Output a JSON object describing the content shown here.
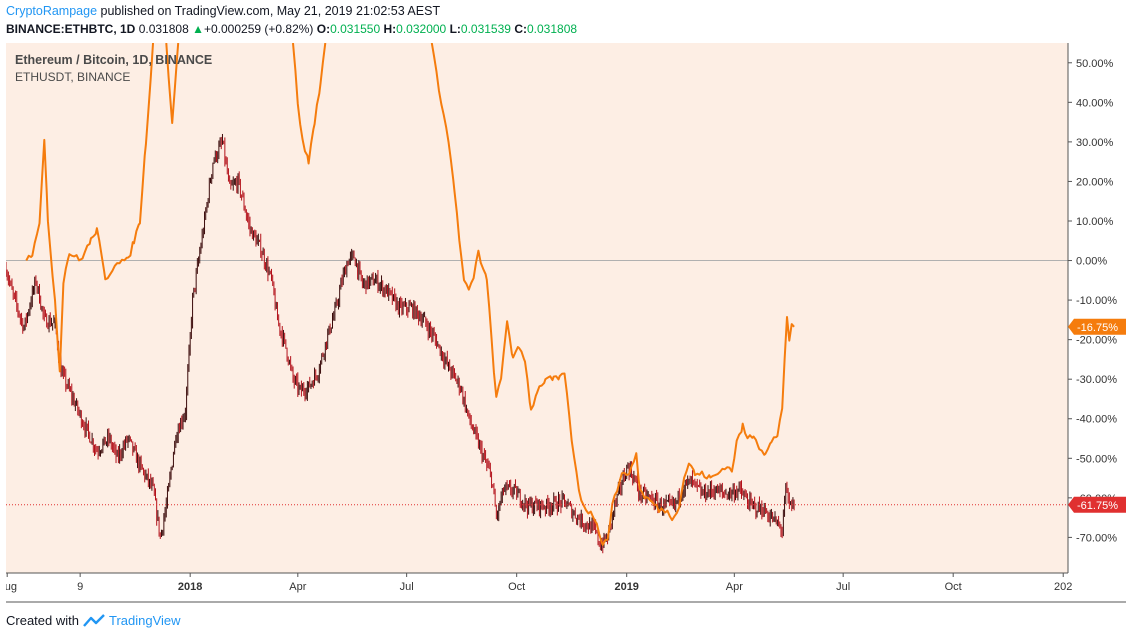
{
  "header": {
    "author": "CryptoRampage",
    "published_text": "published on TradingView.com, May 21, 2019 21:02:53 AEST",
    "symbol": "BINANCE:ETHBTC, 1D",
    "last": "0.031808",
    "change_arrow": "▲",
    "change": "+0.000259 (+0.82%)",
    "o_label": "O:",
    "o_value": "0.031550",
    "h_label": "H:",
    "h_value": "0.032000",
    "l_label": "L:",
    "l_value": "0.031539",
    "c_label": "C:",
    "c_value": "0.031808"
  },
  "footer": {
    "created_with": "Created with",
    "brand": "TradingView",
    "logo_icon": "tradingview-logo-icon"
  },
  "colors": {
    "plot_background": "#fdeee4",
    "ethbtc": "#3a0a0a",
    "ethbtc_candle": "#b3121b",
    "ethusdt": "#f57c0d",
    "last_badge_ethusdt": "#f57c0d",
    "last_badge_ethbtc": "#e03030",
    "zero_line": "#b0b0b0"
  },
  "chart_data": {
    "type": "line",
    "title": "Ethereum / Bitcoin, 1D, BINANCE",
    "subtitle": "ETHUSDT, BINANCE",
    "y_axis": {
      "unit": "% change",
      "ylim": [
        -79,
        55
      ],
      "ticks": [
        50,
        40,
        30,
        20,
        10,
        0,
        -10,
        -20,
        -30,
        -40,
        -50,
        -60,
        -70
      ],
      "tick_labels": [
        "50.00%",
        "40.00%",
        "30.00%",
        "20.00%",
        "10.00%",
        "0.00%",
        "-10.00%",
        "-20.00%",
        "-30.00%",
        "-40.00%",
        "-50.00%",
        "-60.00%",
        "-70.00%"
      ],
      "side": "right"
    },
    "x_axis": {
      "start": "2017-07-31",
      "end": "2020-01-05",
      "ticks": [
        {
          "date": "2017-08-01",
          "label": "Aug",
          "bold": false
        },
        {
          "date": "2017-10-01",
          "label": "9",
          "bold": false
        },
        {
          "date": "2018-01-01",
          "label": "2018",
          "bold": true
        },
        {
          "date": "2018-04-01",
          "label": "Apr",
          "bold": false
        },
        {
          "date": "2018-07-01",
          "label": "Jul",
          "bold": false
        },
        {
          "date": "2018-10-01",
          "label": "Oct",
          "bold": false
        },
        {
          "date": "2019-01-01",
          "label": "2019",
          "bold": true
        },
        {
          "date": "2019-04-01",
          "label": "Apr",
          "bold": false
        },
        {
          "date": "2019-07-01",
          "label": "Jul",
          "bold": false
        },
        {
          "date": "2019-10-01",
          "label": "Oct",
          "bold": false
        },
        {
          "date": "2020-01-01",
          "label": "202",
          "bold": false
        }
      ]
    },
    "grid": false,
    "baseline": 0,
    "series": [
      {
        "name": "ETHBTC",
        "style": "candles",
        "last_value": -61.75,
        "last_label": "-61.75%",
        "points": [
          [
            "2017-07-31",
            -2
          ],
          [
            "2017-08-05",
            -8
          ],
          [
            "2017-08-15",
            -17
          ],
          [
            "2017-08-25",
            -5
          ],
          [
            "2017-09-01",
            -15
          ],
          [
            "2017-09-10",
            -16
          ],
          [
            "2017-09-15",
            -28
          ],
          [
            "2017-09-25",
            -35
          ],
          [
            "2017-10-05",
            -42
          ],
          [
            "2017-10-15",
            -48
          ],
          [
            "2017-10-25",
            -45
          ],
          [
            "2017-11-01",
            -50
          ],
          [
            "2017-11-10",
            -45
          ],
          [
            "2017-11-20",
            -52
          ],
          [
            "2017-12-01",
            -58
          ],
          [
            "2017-12-07",
            -70
          ],
          [
            "2017-12-12",
            -62
          ],
          [
            "2017-12-20",
            -44
          ],
          [
            "2017-12-28",
            -38
          ],
          [
            "2018-01-03",
            -10
          ],
          [
            "2018-01-08",
            0
          ],
          [
            "2018-01-13",
            10
          ],
          [
            "2018-01-20",
            25
          ],
          [
            "2018-01-28",
            30
          ],
          [
            "2018-02-03",
            18
          ],
          [
            "2018-02-10",
            20
          ],
          [
            "2018-02-20",
            8
          ],
          [
            "2018-03-01",
            3
          ],
          [
            "2018-03-10",
            -5
          ],
          [
            "2018-03-15",
            -15
          ],
          [
            "2018-03-22",
            -22
          ],
          [
            "2018-03-28",
            -30
          ],
          [
            "2018-04-03",
            -33
          ],
          [
            "2018-04-10",
            -32
          ],
          [
            "2018-04-18",
            -28
          ],
          [
            "2018-04-25",
            -20
          ],
          [
            "2018-05-03",
            -12
          ],
          [
            "2018-05-08",
            -5
          ],
          [
            "2018-05-13",
            0
          ],
          [
            "2018-05-18",
            1
          ],
          [
            "2018-05-25",
            -6
          ],
          [
            "2018-06-05",
            -5
          ],
          [
            "2018-06-15",
            -8
          ],
          [
            "2018-06-25",
            -12
          ],
          [
            "2018-07-05",
            -12
          ],
          [
            "2018-07-15",
            -15
          ],
          [
            "2018-07-25",
            -20
          ],
          [
            "2018-08-05",
            -27
          ],
          [
            "2018-08-15",
            -32
          ],
          [
            "2018-08-22",
            -40
          ],
          [
            "2018-09-01",
            -48
          ],
          [
            "2018-09-10",
            -55
          ],
          [
            "2018-09-14",
            -65
          ],
          [
            "2018-09-20",
            -58
          ],
          [
            "2018-09-28",
            -58
          ],
          [
            "2018-10-10",
            -62
          ],
          [
            "2018-10-25",
            -62
          ],
          [
            "2018-11-10",
            -61
          ],
          [
            "2018-11-18",
            -64
          ],
          [
            "2018-11-25",
            -66
          ],
          [
            "2018-12-05",
            -68
          ],
          [
            "2018-12-10",
            -72
          ],
          [
            "2018-12-16",
            -70
          ],
          [
            "2018-12-22",
            -62
          ],
          [
            "2018-12-28",
            -56
          ],
          [
            "2019-01-02",
            -52
          ],
          [
            "2019-01-07",
            -55
          ],
          [
            "2019-01-12",
            -59
          ],
          [
            "2019-01-20",
            -60
          ],
          [
            "2019-01-30",
            -62
          ],
          [
            "2019-02-10",
            -62
          ],
          [
            "2019-02-18",
            -57
          ],
          [
            "2019-02-24",
            -56
          ],
          [
            "2019-03-05",
            -59
          ],
          [
            "2019-03-15",
            -58
          ],
          [
            "2019-03-25",
            -59
          ],
          [
            "2019-04-05",
            -58
          ],
          [
            "2019-04-15",
            -62
          ],
          [
            "2019-04-25",
            -63
          ],
          [
            "2019-05-05",
            -66
          ],
          [
            "2019-05-11",
            -68
          ],
          [
            "2019-05-14",
            -58
          ],
          [
            "2019-05-17",
            -62
          ],
          [
            "2019-05-21",
            -61.75
          ]
        ]
      },
      {
        "name": "ETHUSDT",
        "style": "line",
        "last_value": -16.75,
        "last_label": "-16.75%",
        "points": [
          [
            "2017-08-17",
            0
          ],
          [
            "2017-08-22",
            2
          ],
          [
            "2017-08-28",
            10
          ],
          [
            "2017-09-01",
            30
          ],
          [
            "2017-09-04",
            10
          ],
          [
            "2017-09-10",
            -10
          ],
          [
            "2017-09-14",
            -28
          ],
          [
            "2017-09-17",
            -5
          ],
          [
            "2017-09-22",
            2
          ],
          [
            "2017-10-01",
            0
          ],
          [
            "2017-10-10",
            5
          ],
          [
            "2017-10-15",
            8
          ],
          [
            "2017-10-22",
            -5
          ],
          [
            "2017-11-01",
            0
          ],
          [
            "2017-11-10",
            0
          ],
          [
            "2017-11-15",
            5
          ],
          [
            "2017-11-20",
            10
          ],
          [
            "2017-11-25",
            30
          ],
          [
            "2017-12-01",
            55
          ],
          [
            "2017-12-05",
            60
          ]
        ],
        "segments": [
          [
            [
              "2017-12-12",
              55
            ],
            [
              "2017-12-17",
              35
            ],
            [
              "2017-12-22",
              55
            ]
          ],
          [
            [
              "2018-03-28",
              55
            ],
            [
              "2018-04-01",
              40
            ],
            [
              "2018-04-05",
              30
            ],
            [
              "2018-04-10",
              25
            ],
            [
              "2018-04-15",
              35
            ],
            [
              "2018-04-20",
              45
            ],
            [
              "2018-04-24",
              55
            ]
          ],
          [
            [
              "2018-07-22",
              55
            ],
            [
              "2018-07-26",
              47
            ],
            [
              "2018-08-01",
              37
            ],
            [
              "2018-08-05",
              30
            ],
            [
              "2018-08-10",
              18
            ],
            [
              "2018-08-14",
              5
            ],
            [
              "2018-08-18",
              -5
            ],
            [
              "2018-08-22",
              -8
            ],
            [
              "2018-08-26",
              -4
            ],
            [
              "2018-08-30",
              2
            ],
            [
              "2018-09-06",
              -5
            ],
            [
              "2018-09-10",
              -20
            ],
            [
              "2018-09-14",
              -35
            ],
            [
              "2018-09-18",
              -30
            ],
            [
              "2018-09-23",
              -15
            ],
            [
              "2018-09-28",
              -25
            ],
            [
              "2018-10-03",
              -22
            ],
            [
              "2018-10-08",
              -25
            ],
            [
              "2018-10-13",
              -38
            ],
            [
              "2018-10-18",
              -33
            ],
            [
              "2018-10-25",
              -30
            ],
            [
              "2018-11-01",
              -30
            ],
            [
              "2018-11-06",
              -30
            ],
            [
              "2018-11-10",
              -28
            ],
            [
              "2018-11-14",
              -40
            ],
            [
              "2018-11-18",
              -50
            ],
            [
              "2018-11-22",
              -58
            ],
            [
              "2018-11-26",
              -62
            ],
            [
              "2018-12-02",
              -64
            ],
            [
              "2018-12-07",
              -66
            ],
            [
              "2018-12-12",
              -72
            ],
            [
              "2018-12-16",
              -70
            ],
            [
              "2018-12-20",
              -62
            ],
            [
              "2018-12-24",
              -58
            ],
            [
              "2018-12-28",
              -53
            ],
            [
              "2019-01-01",
              -55
            ],
            [
              "2019-01-05",
              -52
            ],
            [
              "2019-01-09",
              -49
            ],
            [
              "2019-01-12",
              -58
            ],
            [
              "2019-01-17",
              -60
            ],
            [
              "2019-01-22",
              -61
            ],
            [
              "2019-01-28",
              -63
            ],
            [
              "2019-02-02",
              -63
            ],
            [
              "2019-02-08",
              -65
            ],
            [
              "2019-02-14",
              -62
            ],
            [
              "2019-02-18",
              -55
            ],
            [
              "2019-02-22",
              -51
            ],
            [
              "2019-02-27",
              -54
            ],
            [
              "2019-03-05",
              -54
            ],
            [
              "2019-03-12",
              -55
            ],
            [
              "2019-03-18",
              -54
            ],
            [
              "2019-03-24",
              -52
            ],
            [
              "2019-03-30",
              -53
            ],
            [
              "2019-04-03",
              -46
            ],
            [
              "2019-04-08",
              -42
            ],
            [
              "2019-04-12",
              -45
            ],
            [
              "2019-04-17",
              -44
            ],
            [
              "2019-04-22",
              -47
            ],
            [
              "2019-04-27",
              -49
            ],
            [
              "2019-05-02",
              -46
            ],
            [
              "2019-05-07",
              -44
            ],
            [
              "2019-05-11",
              -37
            ],
            [
              "2019-05-13",
              -25
            ],
            [
              "2019-05-15",
              -15
            ],
            [
              "2019-05-17",
              -21
            ],
            [
              "2019-05-19",
              -16
            ],
            [
              "2019-05-21",
              -16.75
            ]
          ]
        ]
      }
    ]
  }
}
